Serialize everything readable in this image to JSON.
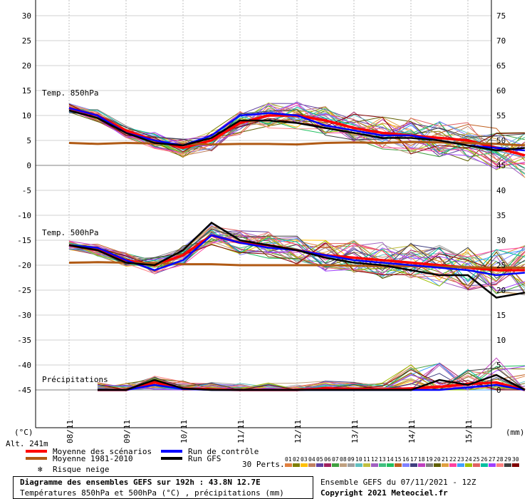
{
  "chart_data": {
    "type": "line",
    "left_axis": {
      "unit": "(°C)",
      "ticks": [
        30,
        25,
        20,
        15,
        10,
        5,
        0,
        -5,
        -10,
        -15,
        -20,
        -25,
        -30,
        -35,
        -40,
        -45
      ]
    },
    "right_axis": {
      "unit": "(mm)",
      "ticks": [
        75,
        70,
        65,
        60,
        55,
        50,
        45,
        40,
        35,
        30,
        25,
        20,
        15,
        10,
        5,
        0
      ]
    },
    "x_ticks": [
      "08/11",
      "09/11",
      "10/11",
      "11/11",
      "12/11",
      "13/11",
      "14/11",
      "15/11"
    ],
    "panel_labels": {
      "t850": "Temp. 850hPa",
      "t500": "Temp. 500hPa",
      "precip": "Précipitations"
    },
    "alt_label": "Alt. 241m",
    "t850": {
      "x": [
        "07/11 12h",
        "08/11 00h",
        "08/11 12h",
        "09/11 00h",
        "09/11 12h",
        "10/11 00h",
        "10/11 12h",
        "11/11 00h",
        "11/11 12h",
        "12/11 00h",
        "12/11 12h",
        "13/11 00h",
        "13/11 12h",
        "14/11 00h",
        "14/11 12h",
        "15/11 00h",
        "15/11 12h"
      ],
      "series": [
        {
          "name": "Moyenne des scénarios",
          "color": "#ff0000",
          "values": [
            11.5,
            10,
            7,
            5,
            3.5,
            5,
            8.5,
            10,
            10,
            9,
            7.5,
            6.5,
            6,
            5.5,
            5,
            3.5,
            2
          ]
        },
        {
          "name": "Moyenne 1981-2010",
          "color": "#b05a14",
          "values": [
            4.5,
            4.3,
            4.5,
            4.4,
            4.3,
            4.2,
            4.3,
            4.3,
            4.2,
            4.5,
            4.6,
            4.5,
            4.7,
            4.6,
            4.5,
            4.3,
            4
          ]
        },
        {
          "name": "Run de contrôle",
          "color": "#0000ff",
          "values": [
            11.5,
            10,
            6.5,
            5,
            4,
            6,
            10,
            10.5,
            10,
            8,
            7,
            6,
            6,
            5,
            4,
            3.5,
            3
          ]
        },
        {
          "name": "Run GFS",
          "color": "#000000",
          "values": [
            11,
            9.5,
            6.5,
            4.5,
            4,
            5.5,
            9,
            9,
            8.5,
            7.5,
            6.5,
            5.5,
            5.5,
            5,
            4,
            3,
            3.5
          ]
        }
      ]
    },
    "t500": {
      "x": [
        "07/11 12h",
        "08/11 00h",
        "08/11 12h",
        "09/11 00h",
        "09/11 12h",
        "10/11 00h",
        "10/11 12h",
        "11/11 00h",
        "11/11 12h",
        "12/11 00h",
        "12/11 12h",
        "13/11 00h",
        "13/11 12h",
        "14/11 00h",
        "14/11 12h",
        "15/11 00h",
        "15/11 12h"
      ],
      "series": [
        {
          "name": "Moyenne des scénarios",
          "color": "#ff0000",
          "values": [
            -16,
            -17,
            -19,
            -20,
            -18,
            -14,
            -15.5,
            -16,
            -17,
            -18,
            -18.5,
            -19,
            -19.5,
            -20,
            -20.5,
            -21,
            -21
          ]
        },
        {
          "name": "Moyenne 1981-2010",
          "color": "#b05a14",
          "values": [
            -19.5,
            -19.4,
            -19.5,
            -19.6,
            -19.8,
            -19.8,
            -20,
            -20,
            -20,
            -20,
            -20.1,
            -20.2,
            -20.2,
            -20.3,
            -20.4,
            -20.5,
            -20.5
          ]
        },
        {
          "name": "Run de contrôle",
          "color": "#0000ff",
          "values": [
            -16,
            -16.5,
            -19,
            -21,
            -19,
            -14,
            -15.5,
            -16.5,
            -17,
            -18,
            -19,
            -19.5,
            -20,
            -20.5,
            -21,
            -22,
            -21.5
          ]
        },
        {
          "name": "Run GFS",
          "color": "#000000",
          "values": [
            -16,
            -17,
            -19.5,
            -20,
            -17,
            -11.5,
            -15,
            -16,
            -17,
            -18.5,
            -19.5,
            -20,
            -21,
            -22,
            -22,
            -26.5,
            -25.5
          ]
        }
      ]
    },
    "precip": {
      "x": [
        "08/11 00h",
        "08/11 12h",
        "09/11 00h",
        "09/11 12h",
        "10/11 00h",
        "10/11 12h",
        "11/11 00h",
        "11/11 12h",
        "12/11 00h",
        "12/11 12h",
        "13/11 00h",
        "13/11 12h",
        "14/11 00h",
        "14/11 12h",
        "15/11 00h",
        "15/11 12h"
      ],
      "series": [
        {
          "name": "Moyenne des scénarios",
          "color": "#ff0000",
          "values": [
            0,
            0,
            1.5,
            0.3,
            0.1,
            0,
            0,
            0,
            0.3,
            0.2,
            0.1,
            0.3,
            0.6,
            1.2,
            1.5,
            0
          ]
        },
        {
          "name": "Run de contrôle",
          "color": "#0000ff",
          "values": [
            0,
            0,
            1,
            0.2,
            0,
            0,
            0,
            0,
            0,
            0,
            0,
            0,
            0,
            0.5,
            1,
            0
          ]
        },
        {
          "name": "Run GFS",
          "color": "#000000",
          "values": [
            0,
            0,
            2,
            0.3,
            0,
            0,
            0,
            0,
            0,
            0,
            0,
            0,
            2,
            1,
            3,
            0
          ]
        }
      ]
    }
  },
  "legend": {
    "items": [
      {
        "label": "Moyenne des scénarios",
        "color": "#ff0000"
      },
      {
        "label": "Moyenne 1981-2010",
        "color": "#b05a14"
      },
      {
        "label": "Run de contrôle",
        "color": "#0000ff"
      },
      {
        "label": "Run GFS",
        "color": "#000000"
      }
    ],
    "snow_label": "Risque neige",
    "perts_label": "30 Perts.",
    "pert_numbers": [
      "01",
      "02",
      "03",
      "04",
      "05",
      "06",
      "07",
      "08",
      "09",
      "10",
      "11",
      "12",
      "13",
      "14",
      "15",
      "16",
      "17",
      "18",
      "19",
      "20",
      "21",
      "22",
      "23",
      "24",
      "25",
      "26",
      "27",
      "28",
      "29",
      "30"
    ],
    "pert_colors": [
      "#e08040",
      "#808000",
      "#ffc000",
      "#c08060",
      "#6040a0",
      "#a02060",
      "#40a040",
      "#c0a080",
      "#a0a0a0",
      "#60c0c0",
      "#c0c040",
      "#a060c0",
      "#40c080",
      "#20c060",
      "#c06020",
      "#8080ff",
      "#404080",
      "#c040c0",
      "#808080",
      "#606000",
      "#e0a040",
      "#ff40a0",
      "#40a0ff",
      "#a0c000",
      "#e06060",
      "#00c0a0",
      "#a040ff",
      "#ff8080",
      "#404040",
      "#800000"
    ]
  },
  "footer": {
    "title": "Diagramme des ensembles GEFS sur 192h : 43.8N 12.7E",
    "subtitle": "Températures 850hPa et 500hPa (°C) , précipitations (mm)",
    "run_info": "Ensemble GEFS du 07/11/2021 - 12Z",
    "copyright": "Copyright 2021 Meteociel.fr"
  }
}
